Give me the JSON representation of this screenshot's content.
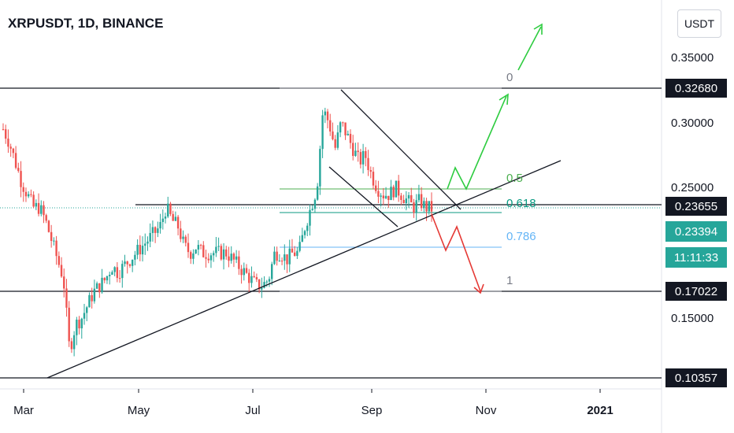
{
  "header": {
    "symbol_title": "XRPUSDT, 1D, BINANCE"
  },
  "currency_button": "USDT",
  "chart_data": {
    "type": "candlestick",
    "symbol": "XRPUSDT",
    "interval": "1D",
    "exchange": "BINANCE",
    "x_ticks": [
      "Mar",
      "May",
      "Jul",
      "Sep",
      "Nov",
      "2021"
    ],
    "y_ticks": [
      "0.35000",
      "0.30000",
      "0.25000",
      "0.15000"
    ],
    "price_labels": [
      {
        "text": "0.32680",
        "kind": "horizontal-level"
      },
      {
        "text": "0.23655",
        "kind": "horizontal-level"
      },
      {
        "text": "0.23394",
        "kind": "last-price"
      },
      {
        "text": "11:11:33",
        "kind": "countdown"
      },
      {
        "text": "0.17022",
        "kind": "horizontal-level"
      },
      {
        "text": "0.10357",
        "kind": "horizontal-level"
      }
    ],
    "fibonacci_labels": [
      {
        "text": "0",
        "color": "#787b86"
      },
      {
        "text": "0.5",
        "color": "#4caf50"
      },
      {
        "text": "0.618",
        "color": "#089981"
      },
      {
        "text": "0.786",
        "color": "#64b5f6"
      },
      {
        "text": "1",
        "color": "#787b86"
      }
    ],
    "colors": {
      "up": "#26a69a",
      "down": "#ef5350",
      "bullish_arrow": "#2ecc40",
      "bearish_arrow": "#e53935"
    },
    "approx_close_series": [
      0.295,
      0.285,
      0.27,
      0.255,
      0.245,
      0.235,
      0.235,
      0.225,
      0.21,
      0.195,
      0.18,
      0.125,
      0.145,
      0.15,
      0.16,
      0.17,
      0.175,
      0.18,
      0.19,
      0.185,
      0.19,
      0.195,
      0.2,
      0.205,
      0.21,
      0.215,
      0.22,
      0.235,
      0.225,
      0.22,
      0.205,
      0.2,
      0.205,
      0.2,
      0.2,
      0.2,
      0.2,
      0.2,
      0.195,
      0.19,
      0.185,
      0.18,
      0.175,
      0.175,
      0.18,
      0.2,
      0.2,
      0.195,
      0.2,
      0.2,
      0.22,
      0.235,
      0.25,
      0.31,
      0.3,
      0.28,
      0.3,
      0.29,
      0.28,
      0.27,
      0.275,
      0.26,
      0.25,
      0.245,
      0.245,
      0.25,
      0.245,
      0.24,
      0.235,
      0.24,
      0.235,
      0.234
    ]
  }
}
